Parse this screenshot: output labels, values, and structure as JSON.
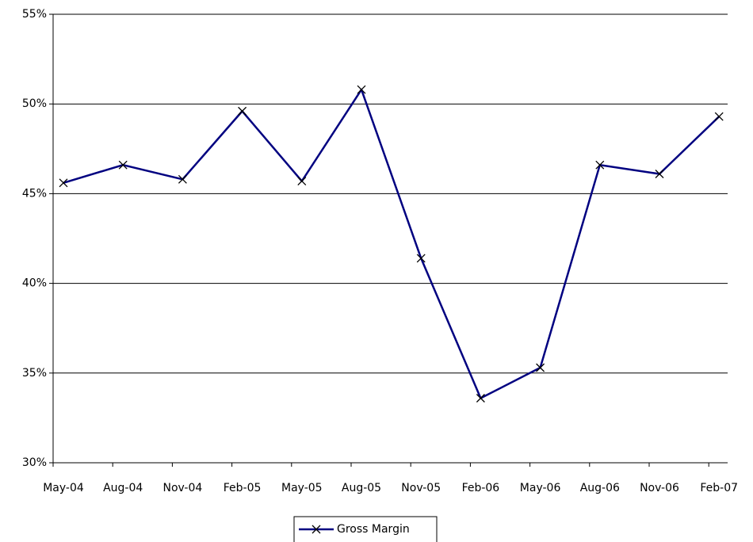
{
  "chart_data": {
    "type": "line",
    "categories": [
      "May-04",
      "Aug-04",
      "Nov-04",
      "Feb-05",
      "May-05",
      "Aug-05",
      "Nov-05",
      "Feb-06",
      "May-06",
      "Aug-06",
      "Nov-06",
      "Feb-07"
    ],
    "series": [
      {
        "name": "Gross Margin",
        "color": "#000080",
        "marker": "x",
        "values": [
          45.6,
          46.6,
          45.8,
          49.6,
          45.7,
          50.8,
          41.4,
          33.6,
          35.3,
          46.6,
          46.1,
          49.3
        ]
      }
    ],
    "ylim": [
      30,
      55
    ],
    "yticks": [
      {
        "value": 30,
        "label": "30%"
      },
      {
        "value": 35,
        "label": "35%"
      },
      {
        "value": 40,
        "label": "40%"
      },
      {
        "value": 45,
        "label": "45%"
      },
      {
        "value": 50,
        "label": "50%"
      },
      {
        "value": 55,
        "label": "55%"
      }
    ],
    "grid": true,
    "legend": "bottom"
  }
}
